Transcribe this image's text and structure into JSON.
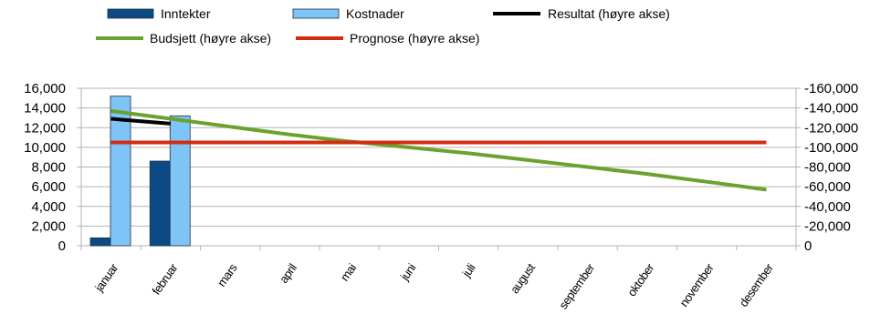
{
  "chart_data": {
    "type": "bar",
    "categories": [
      "januar",
      "februar",
      "mars",
      "april",
      "mai",
      "juni",
      "juli",
      "august",
      "september",
      "oktober",
      "november",
      "desember"
    ],
    "series": [
      {
        "name": "Inntekter",
        "type": "bar",
        "axis": "left",
        "color": "#0b4a86",
        "values": [
          800,
          8600,
          null,
          null,
          null,
          null,
          null,
          null,
          null,
          null,
          null,
          null
        ]
      },
      {
        "name": "Kostnader",
        "type": "bar",
        "axis": "left",
        "color": "#7fc4f7",
        "values": [
          15200,
          13200,
          null,
          null,
          null,
          null,
          null,
          null,
          null,
          null,
          null,
          null
        ]
      },
      {
        "name": "Resultat (høyre akse)",
        "type": "line",
        "axis": "right",
        "color": "#000000",
        "values": [
          -129000,
          -124000,
          null,
          null,
          null,
          null,
          null,
          null,
          null,
          null,
          null,
          null
        ]
      },
      {
        "name": "Budsjett (høyre akse)",
        "type": "line",
        "axis": "right",
        "color": "#6aa22e",
        "values": [
          -137000,
          -129000,
          -121000,
          -113000,
          -106000,
          -100000,
          -94000,
          -87000,
          -80000,
          -73000,
          -65000,
          -57000
        ]
      },
      {
        "name": "Prognose (høyre akse)",
        "type": "line",
        "axis": "right",
        "color": "#d42c10",
        "values": [
          -105000,
          -105000,
          -105000,
          -105000,
          -105000,
          -105000,
          -105000,
          -105000,
          -105000,
          -105000,
          -105000,
          -105000
        ]
      }
    ],
    "ylim": [
      0,
      16000
    ],
    "y_ticks": [
      "0",
      "2,000",
      "4,000",
      "6,000",
      "8,000",
      "10,000",
      "12,000",
      "14,000",
      "16,000"
    ],
    "y2lim": [
      0,
      -160000
    ],
    "y2_ticks": [
      "0",
      "-20,000",
      "-40,000",
      "-60,000",
      "-80,000",
      "-100,000",
      "-120,000",
      "-140,000",
      "-160,000"
    ],
    "grid": true,
    "legend_position": "top"
  }
}
